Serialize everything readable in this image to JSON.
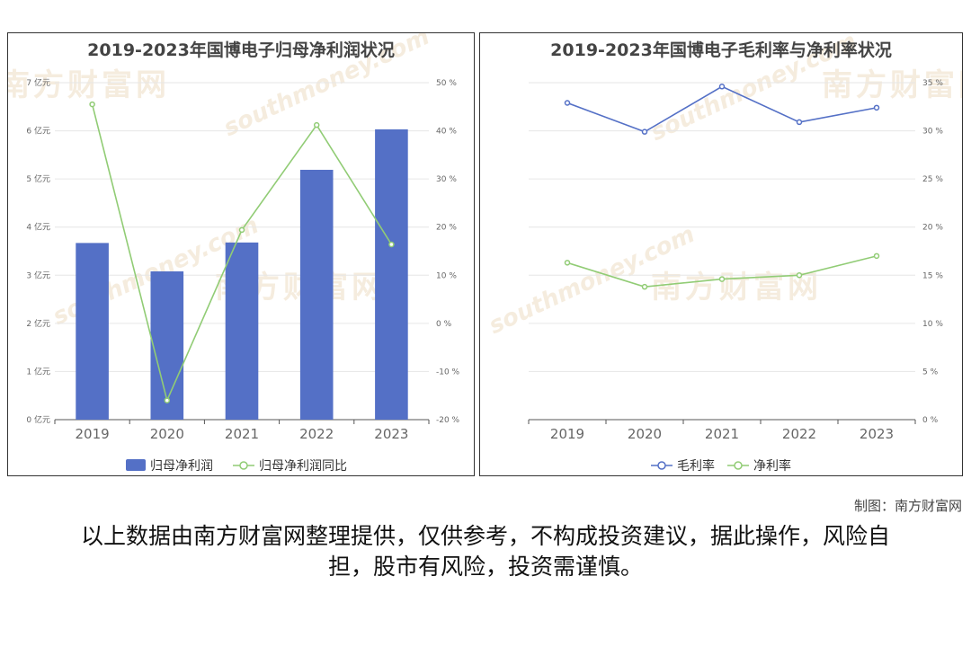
{
  "footer": {
    "credit": "制图：南方财富网",
    "disclaimer": "以上数据由南方财富网整理提供，仅供参考，不构成投资建议，据此操作，风险自担，股市有风险，投资需谨慎。"
  },
  "watermark": {
    "cn": "南方财富网",
    "en": "southmoney.com"
  },
  "colors": {
    "bar": "#5470c6",
    "green": "#91cc75",
    "blue": "#5470c6",
    "axis": "#555555",
    "tick": "#666666",
    "grid": "#e6e6e6"
  },
  "chart_data": [
    {
      "type": "bar",
      "title": "2019-2023年国博电子归母净利润状况",
      "categories": [
        "2019",
        "2020",
        "2021",
        "2022",
        "2023"
      ],
      "series": [
        {
          "name": "归母净利润",
          "type": "bar",
          "axis": "left",
          "values": [
            3.67,
            3.08,
            3.68,
            5.19,
            6.03
          ]
        },
        {
          "name": "归母净利润同比",
          "type": "line",
          "axis": "right",
          "values": [
            45.5,
            -16.0,
            19.4,
            41.2,
            16.4
          ]
        }
      ],
      "y_left": {
        "min": 0,
        "max": 7,
        "step": 1,
        "unit": " 亿元"
      },
      "y_right": {
        "min": -20,
        "max": 50,
        "step": 10,
        "unit": " %"
      },
      "legend": "bottom"
    },
    {
      "type": "line",
      "title": "2019-2023年国博电子毛利率与净利率状况",
      "categories": [
        "2019",
        "2020",
        "2021",
        "2022",
        "2023"
      ],
      "series": [
        {
          "name": "毛利率",
          "values": [
            32.9,
            29.9,
            34.6,
            30.9,
            32.4
          ]
        },
        {
          "name": "净利率",
          "values": [
            16.3,
            13.8,
            14.6,
            15.0,
            17.0
          ]
        }
      ],
      "y_right": {
        "min": 0,
        "max": 35,
        "step": 5,
        "unit": " %"
      },
      "legend": "bottom"
    }
  ]
}
